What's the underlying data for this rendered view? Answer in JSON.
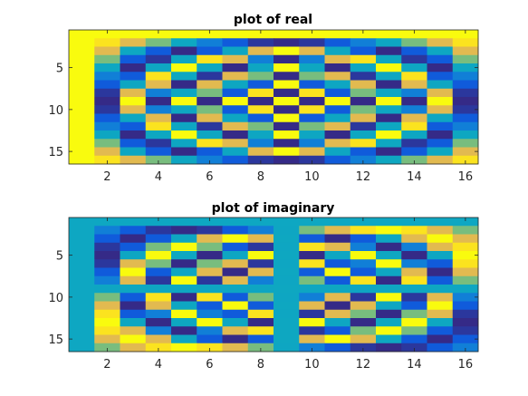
{
  "chart_data": [
    {
      "type": "heatmap",
      "title": "plot of real",
      "colormap": "parula",
      "xlim": [
        0.5,
        16.5
      ],
      "ylim": [
        0.5,
        16.5
      ],
      "y_reversed": true,
      "xticks": [
        2,
        4,
        6,
        8,
        10,
        12,
        14,
        16
      ],
      "xtick_labels": [
        "2",
        "4",
        "6",
        "8",
        "10",
        "12",
        "14",
        "16"
      ],
      "yticks": [
        5,
        10,
        15
      ],
      "ytick_labels": [
        "5",
        "10",
        "15"
      ],
      "clim": [
        -1,
        1
      ],
      "description": "real part of a 16x16 DFT matrix: element (k,j) = cos(2*pi*(k-1)*(j-1)/16)"
    },
    {
      "type": "heatmap",
      "title": "plot of imaginary",
      "colormap": "parula",
      "xlim": [
        0.5,
        16.5
      ],
      "ylim": [
        0.5,
        16.5
      ],
      "y_reversed": true,
      "xticks": [
        2,
        4,
        6,
        8,
        10,
        12,
        14,
        16
      ],
      "xtick_labels": [
        "2",
        "4",
        "6",
        "8",
        "10",
        "12",
        "14",
        "16"
      ],
      "yticks": [
        5,
        10,
        15
      ],
      "ytick_labels": [
        "5",
        "10",
        "15"
      ],
      "clim": [
        -1,
        1
      ],
      "description": "imaginary part of a 16x16 DFT matrix: element (k,j) = -sin(2*pi*(k-1)*(j-1)/16)"
    }
  ]
}
